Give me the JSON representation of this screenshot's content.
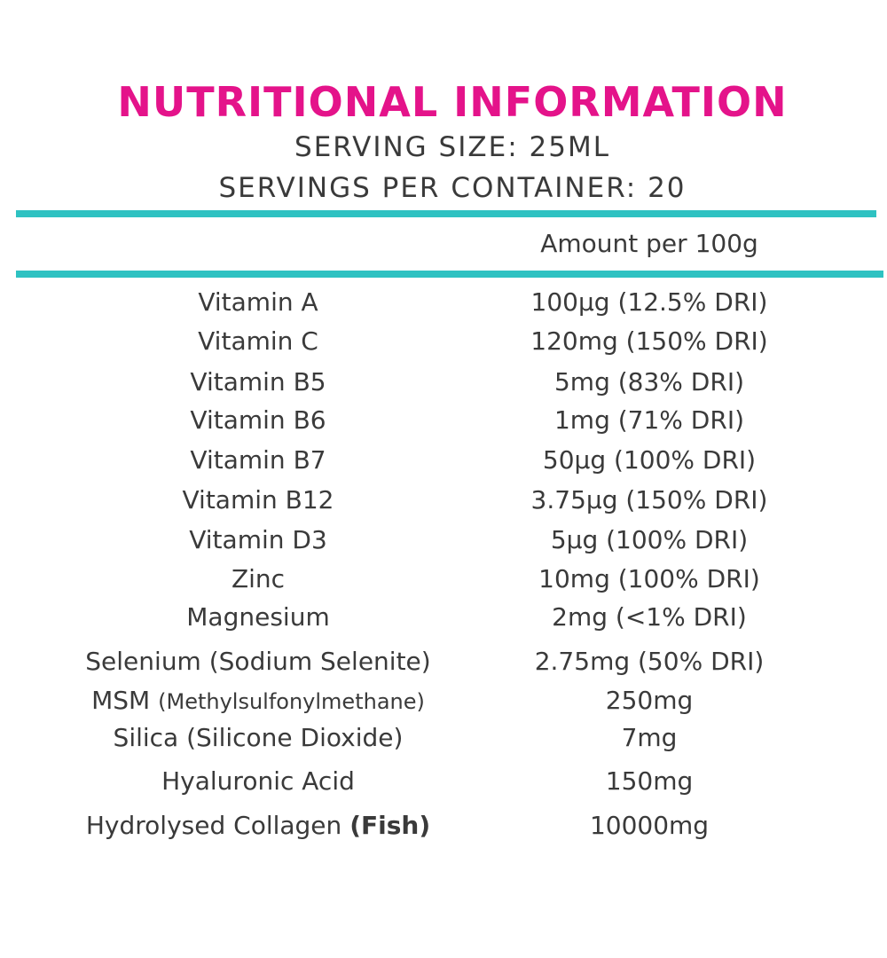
{
  "header": {
    "title": "NUTRITIONAL INFORMATION",
    "serving_size": "SERVING SIZE: 25ML",
    "servings_per_container": "SERVINGS PER CONTAINER: 20"
  },
  "table": {
    "column_header": "Amount per 100g",
    "rows": [
      {
        "name": "Vitamin A",
        "amount": "100µg (12.5% DRI)"
      },
      {
        "name": "Vitamin C",
        "amount": "120mg (150% DRI)"
      },
      {
        "name": "Vitamin B5",
        "amount": "5mg (83% DRI)"
      },
      {
        "name": "Vitamin B6",
        "amount": "1mg (71% DRI)"
      },
      {
        "name": "Vitamin B7",
        "amount": "50µg (100% DRI)"
      },
      {
        "name": "Vitamin B12",
        "amount": "3.75µg (150% DRI)"
      },
      {
        "name": "Vitamin D3",
        "amount": "5µg (100% DRI)"
      },
      {
        "name": "Zinc",
        "amount": "10mg (100% DRI)"
      },
      {
        "name": "Magnesium",
        "amount": "2mg (<1% DRI)"
      },
      {
        "name": "Selenium (Sodium Selenite)",
        "amount": "2.75mg (50% DRI)"
      },
      {
        "name": "MSM",
        "name_suffix": "(Methylsulfonylmethane)",
        "amount": "250mg"
      },
      {
        "name": "Silica (Silicone Dioxide)",
        "amount": "7mg"
      },
      {
        "name": "Hyaluronic Acid",
        "amount": "150mg"
      },
      {
        "name": "Hydrolysed Collagen",
        "name_bold": "(Fish)",
        "amount": "10000mg"
      }
    ]
  },
  "colors": {
    "title": "#e4138a",
    "rule": "#2ec2c2",
    "text": "#3a3a3a"
  }
}
